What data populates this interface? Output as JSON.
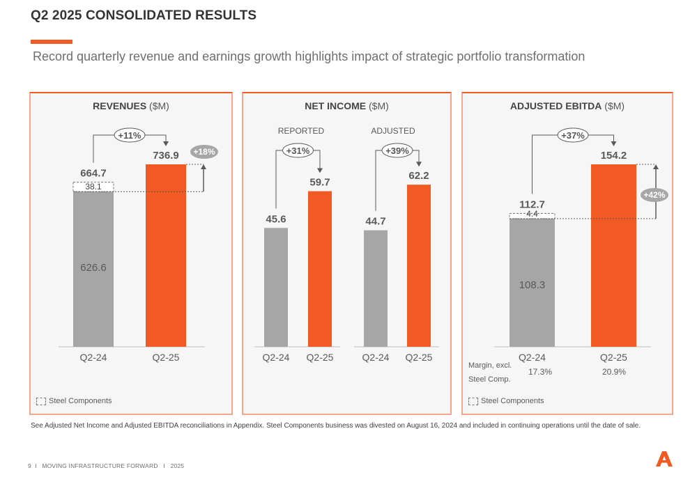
{
  "header": {
    "title": "Q2 2025 CONSOLIDATED RESULTS",
    "subtitle": "Record quarterly revenue and earnings growth highlights impact of strategic portfolio transformation"
  },
  "colors": {
    "accent": "#f15a22",
    "prior_bar": "#a6a6a6",
    "growth_badge": "#a6a6a6"
  },
  "panels": {
    "revenues": {
      "title_bold": "REVENUES",
      "title_unit": " ($M)",
      "growth_label": "+11%",
      "growth_excl_label": "+18%",
      "legend": "Steel Components"
    },
    "net_income": {
      "title_bold": "NET INCOME",
      "title_unit": " ($M)",
      "reported_label": "REPORTED",
      "adjusted_label": "ADJUSTED",
      "reported_growth": "+31%",
      "adjusted_growth": "+39%"
    },
    "adjusted_ebitda": {
      "title_bold": "ADJUSTED EBITDA",
      "title_unit": " ($M)",
      "growth_label": "+37%",
      "growth_excl_label": "+42%",
      "margin_label_line1": "Margin, excl.",
      "margin_label_line2": "Steel Comp.",
      "margins": [
        "17.3%",
        "20.9%"
      ],
      "legend": "Steel Components"
    }
  },
  "chart_data": [
    {
      "type": "bar",
      "title": "REVENUES ($M)",
      "categories": [
        "Q2-24",
        "Q2-25"
      ],
      "values": [
        664.7,
        736.9
      ],
      "steel_components": [
        38.1,
        0
      ],
      "base_excl_steel": [
        626.6,
        null
      ],
      "labels": [
        "664.7",
        "736.9"
      ],
      "steel_label": "38.1",
      "base_label": "626.6",
      "ylim": [
        0,
        800
      ]
    },
    {
      "type": "bar",
      "title": "NET INCOME ($M) - REPORTED",
      "categories": [
        "Q2-24",
        "Q2-25"
      ],
      "values": [
        45.6,
        59.7
      ],
      "labels": [
        "45.6",
        "59.7"
      ],
      "ylim": [
        0,
        70
      ]
    },
    {
      "type": "bar",
      "title": "NET INCOME ($M) - ADJUSTED",
      "categories": [
        "Q2-24",
        "Q2-25"
      ],
      "values": [
        44.7,
        62.2
      ],
      "labels": [
        "44.7",
        "62.2"
      ],
      "ylim": [
        0,
        70
      ]
    },
    {
      "type": "bar",
      "title": "ADJUSTED EBITDA ($M)",
      "categories": [
        "Q2-24",
        "Q2-25"
      ],
      "values": [
        112.7,
        154.2
      ],
      "steel_components": [
        4.4,
        0
      ],
      "base_excl_steel": [
        108.3,
        null
      ],
      "labels": [
        "112.7",
        "154.2"
      ],
      "steel_label": "4.4",
      "base_label": "108.3",
      "ylim": [
        0,
        170
      ]
    }
  ],
  "note": "See Adjusted Net Income and Adjusted EBITDA reconciliations in Appendix. Steel Components business was divested on August 16, 2024 and included in continuing operations until the date of sale.",
  "footer": {
    "page": "9",
    "sep": "I",
    "tagline": "MOVING INFRASTRUCTURE FORWARD",
    "year": "2025"
  }
}
